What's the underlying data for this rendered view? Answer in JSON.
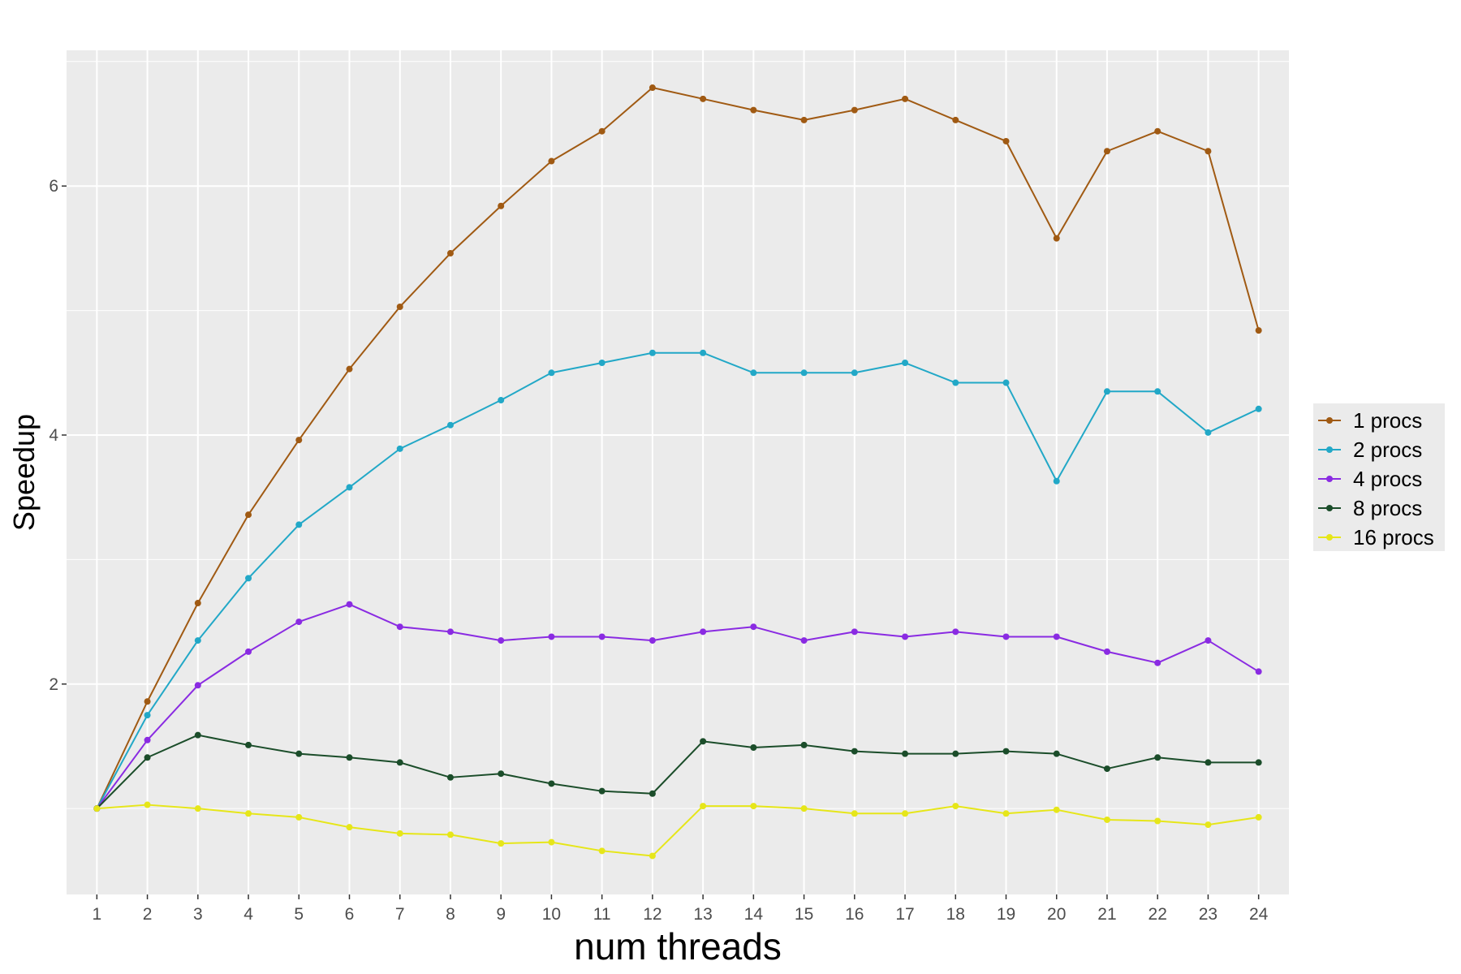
{
  "chart_data": {
    "type": "line",
    "xlabel": "num threads",
    "ylabel": "Speedup",
    "x": [
      1,
      2,
      3,
      4,
      5,
      6,
      7,
      8,
      9,
      10,
      11,
      12,
      13,
      14,
      15,
      16,
      17,
      18,
      19,
      20,
      21,
      22,
      23,
      24
    ],
    "x_tick_labels": [
      "1",
      "2",
      "3",
      "4",
      "5",
      "6",
      "7",
      "8",
      "9",
      "10",
      "11",
      "12",
      "13",
      "14",
      "15",
      "16",
      "17",
      "18",
      "19",
      "20",
      "21",
      "22",
      "23",
      "24"
    ],
    "y_ticks": [
      2,
      4,
      6
    ],
    "y_tick_labels": [
      "2",
      "4",
      "6"
    ],
    "xlim": [
      0.4,
      24.6
    ],
    "ylim": [
      0.31,
      7.09
    ],
    "grid": true,
    "legend_position": "right",
    "series": [
      {
        "name": "1 procs",
        "color": "#a05a13",
        "values": [
          1.0,
          1.86,
          2.65,
          3.36,
          3.96,
          4.53,
          5.03,
          5.46,
          5.84,
          6.2,
          6.44,
          6.79,
          6.7,
          6.61,
          6.53,
          6.61,
          6.7,
          6.53,
          6.36,
          5.58,
          6.28,
          6.44,
          6.28,
          4.84
        ]
      },
      {
        "name": "2 procs",
        "color": "#22a8c7",
        "values": [
          1.0,
          1.75,
          2.35,
          2.85,
          3.28,
          3.58,
          3.89,
          4.08,
          4.28,
          4.5,
          4.58,
          4.66,
          4.66,
          4.5,
          4.5,
          4.5,
          4.58,
          4.42,
          4.42,
          3.63,
          4.35,
          4.35,
          4.02,
          4.21
        ]
      },
      {
        "name": "4 procs",
        "color": "#8a2be2",
        "values": [
          1.0,
          1.55,
          1.99,
          2.26,
          2.5,
          2.64,
          2.46,
          2.42,
          2.35,
          2.38,
          2.38,
          2.35,
          2.42,
          2.46,
          2.35,
          2.42,
          2.38,
          2.42,
          2.38,
          2.38,
          2.26,
          2.17,
          2.35,
          2.1
        ]
      },
      {
        "name": "8 procs",
        "color": "#1b4d2a",
        "values": [
          1.0,
          1.41,
          1.59,
          1.51,
          1.44,
          1.41,
          1.37,
          1.25,
          1.28,
          1.2,
          1.14,
          1.12,
          1.54,
          1.49,
          1.51,
          1.46,
          1.44,
          1.44,
          1.46,
          1.44,
          1.32,
          1.41,
          1.37,
          1.37
        ]
      },
      {
        "name": "16 procs",
        "color": "#e6e619",
        "values": [
          1.0,
          1.03,
          1.0,
          0.96,
          0.93,
          0.85,
          0.8,
          0.79,
          0.72,
          0.73,
          0.66,
          0.62,
          1.02,
          1.02,
          1.0,
          0.96,
          0.96,
          1.02,
          0.96,
          0.99,
          0.91,
          0.9,
          0.87,
          0.93
        ]
      }
    ]
  }
}
